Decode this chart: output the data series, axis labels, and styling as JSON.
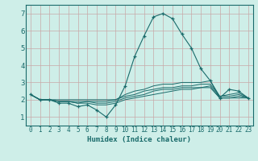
{
  "xlabel": "Humidex (Indice chaleur)",
  "ylabel": "",
  "background_color": "#ceeee8",
  "grid_color": "#c8a8a8",
  "line_color": "#1a6b6b",
  "xlim": [
    -0.5,
    23.5
  ],
  "ylim": [
    0.5,
    7.5
  ],
  "x_ticks": [
    0,
    1,
    2,
    3,
    4,
    5,
    6,
    7,
    8,
    9,
    10,
    11,
    12,
    13,
    14,
    15,
    16,
    17,
    18,
    19,
    20,
    21,
    22,
    23
  ],
  "y_ticks": [
    1,
    2,
    3,
    4,
    5,
    6,
    7
  ],
  "series": [
    [
      2.3,
      2.0,
      2.0,
      1.8,
      1.8,
      1.6,
      1.7,
      1.4,
      1.0,
      1.7,
      2.8,
      4.5,
      5.7,
      6.8,
      7.0,
      6.7,
      5.8,
      5.0,
      3.8,
      3.1,
      2.1,
      2.6,
      2.5,
      2.1
    ],
    [
      2.3,
      2.0,
      2.0,
      1.9,
      1.9,
      1.8,
      1.8,
      1.7,
      1.7,
      1.8,
      2.0,
      2.1,
      2.2,
      2.3,
      2.4,
      2.5,
      2.6,
      2.6,
      2.7,
      2.7,
      2.1,
      2.1,
      2.1,
      2.1
    ],
    [
      2.3,
      2.0,
      2.0,
      1.9,
      1.9,
      1.8,
      1.9,
      1.8,
      1.8,
      1.9,
      2.1,
      2.2,
      2.3,
      2.5,
      2.6,
      2.6,
      2.7,
      2.7,
      2.7,
      2.8,
      2.1,
      2.1,
      2.2,
      2.1
    ],
    [
      2.3,
      2.0,
      2.0,
      1.9,
      1.9,
      1.9,
      1.9,
      1.9,
      1.9,
      2.0,
      2.2,
      2.3,
      2.5,
      2.6,
      2.7,
      2.7,
      2.8,
      2.8,
      2.9,
      2.9,
      2.2,
      2.2,
      2.3,
      2.1
    ],
    [
      2.3,
      2.0,
      2.0,
      2.0,
      2.0,
      2.0,
      2.0,
      2.0,
      2.0,
      2.0,
      2.3,
      2.5,
      2.6,
      2.8,
      2.9,
      2.9,
      3.0,
      3.0,
      3.0,
      3.1,
      2.2,
      2.3,
      2.4,
      2.1
    ]
  ]
}
